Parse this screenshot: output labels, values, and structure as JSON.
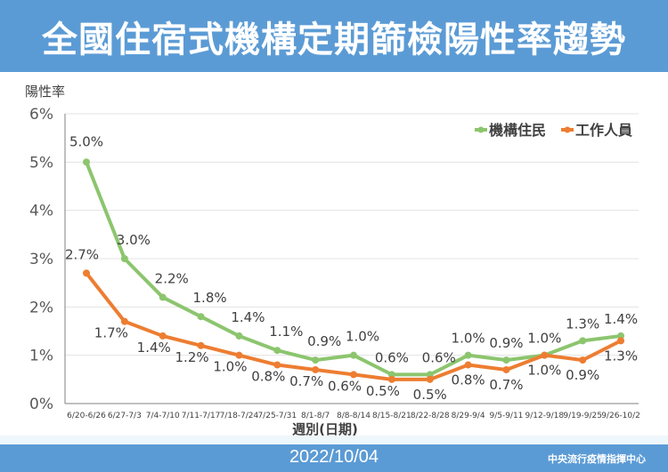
{
  "header": {
    "title": "全國住宿式機構定期篩檢陽性率趨勢"
  },
  "footer": {
    "date": "2022/10/04",
    "org": "中央流行疫情指揮中心"
  },
  "chart_data": {
    "type": "line",
    "title": "全國住宿式機構定期篩檢陽性率趨勢",
    "xlabel": "週別(日期)",
    "ylabel": "陽性率",
    "ylim": [
      0,
      6
    ],
    "yticks": [
      0,
      1,
      2,
      3,
      4,
      5,
      6
    ],
    "ytick_labels": [
      "0%",
      "1%",
      "2%",
      "3%",
      "4%",
      "5%",
      "6%"
    ],
    "grid": true,
    "legend_position": "top-right",
    "categories": [
      "6/20-6/26",
      "6/27-7/3",
      "7/4-7/10",
      "7/11-7/17",
      "7/18-7/24",
      "7/25-7/31",
      "8/1-8/7",
      "8/8-8/14",
      "8/15-8/21",
      "8/22-8/28",
      "8/29-9/4",
      "9/5-9/11",
      "9/12-9/18",
      "9/19-9/25",
      "9/26-10/2"
    ],
    "series": [
      {
        "name": "機構住民",
        "color": "#8cc56e",
        "values": [
          5.0,
          3.0,
          2.2,
          1.8,
          1.4,
          1.1,
          0.9,
          1.0,
          0.6,
          0.6,
          1.0,
          0.9,
          1.0,
          1.3,
          1.4
        ],
        "labels": [
          "5.0%",
          "3.0%",
          "2.2%",
          "1.8%",
          "1.4%",
          "1.1%",
          "0.9%",
          "1.0%",
          "0.6%",
          "0.6%",
          "1.0%",
          "0.9%",
          "1.0%",
          "1.3%",
          "1.4%"
        ]
      },
      {
        "name": "工作人員",
        "color": "#ed7d31",
        "values": [
          2.7,
          1.7,
          1.4,
          1.2,
          1.0,
          0.8,
          0.7,
          0.6,
          0.5,
          0.5,
          0.8,
          0.7,
          1.0,
          0.9,
          1.3
        ],
        "labels": [
          "2.7%",
          "1.7%",
          "1.4%",
          "1.2%",
          "1.0%",
          "0.8%",
          "0.7%",
          "0.6%",
          "0.5%",
          "0.5%",
          "0.8%",
          "0.7%",
          "1.0%",
          "0.9%",
          "1.3%"
        ]
      }
    ]
  }
}
